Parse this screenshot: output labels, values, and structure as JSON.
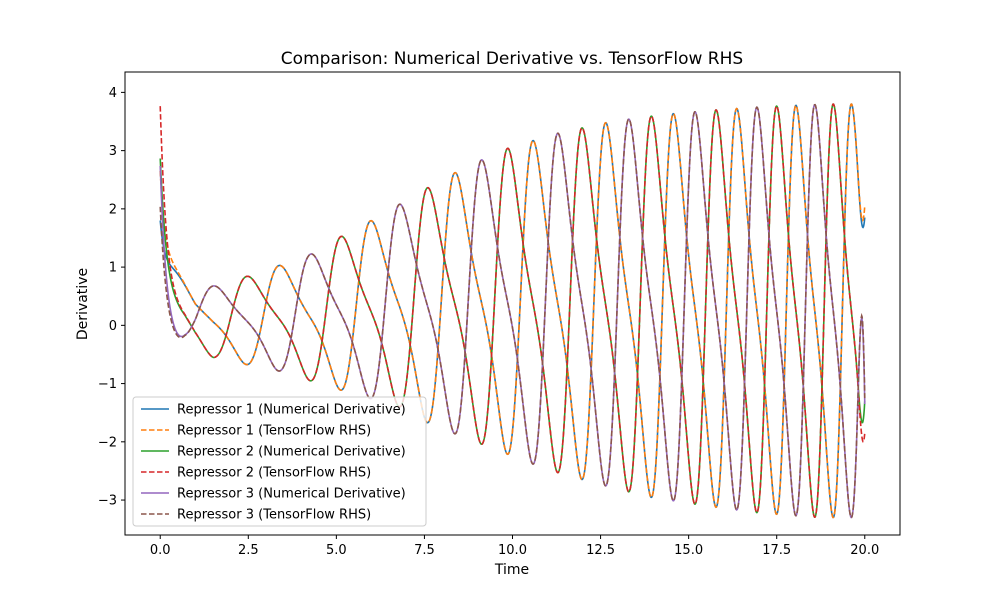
{
  "chart_data": {
    "type": "line",
    "title": "Comparison: Numerical Derivative vs. TensorFlow RHS",
    "xlabel": "Time",
    "ylabel": "Derivative",
    "xlim": [
      -1.0,
      21.0
    ],
    "ylim": [
      -3.6,
      4.35
    ],
    "xticks": [
      0.0,
      2.5,
      5.0,
      7.5,
      10.0,
      12.5,
      15.0,
      17.5,
      20.0
    ],
    "xtick_labels": [
      "0.0",
      "2.5",
      "5.0",
      "7.5",
      "10.0",
      "12.5",
      "15.0",
      "17.5",
      "20.0"
    ],
    "yticks": [
      -3,
      -2,
      -1,
      0,
      1,
      2,
      3,
      4
    ],
    "ytick_labels": [
      "−3",
      "−2",
      "−1",
      "0",
      "1",
      "2",
      "3",
      "4"
    ],
    "grid": false,
    "legend_position": "lower-left",
    "oscillation": {
      "t_start": 0.0,
      "t_end": 20.0,
      "base_period": 3.1,
      "final_period": 1.5,
      "phase_offsets": [
        0.0,
        0.6667,
        0.3333
      ]
    },
    "envelope": {
      "upper": {
        "t": [
          0.0,
          1.0,
          2.0,
          3.0,
          4.2,
          5.2,
          6.3,
          7.4,
          8.6,
          9.9,
          11.3,
          12.8,
          14.3,
          15.8,
          17.3,
          19.0,
          20.0
        ],
        "v": [
          1.0,
          0.6,
          0.75,
          0.95,
          1.2,
          1.55,
          1.9,
          2.3,
          2.7,
          3.05,
          3.3,
          3.5,
          3.62,
          3.7,
          3.76,
          3.8,
          3.8
        ]
      },
      "lower": {
        "t": [
          0.0,
          0.7,
          1.5,
          2.5,
          3.5,
          4.5,
          5.5,
          6.8,
          7.5,
          8.6,
          9.8,
          11.0,
          12.4,
          13.9,
          15.5,
          17.0,
          18.7,
          20.0
        ],
        "v": [
          -0.3,
          -0.28,
          -0.55,
          -0.68,
          -0.8,
          -1.0,
          -1.18,
          -1.4,
          -1.65,
          -1.92,
          -2.2,
          -2.48,
          -2.72,
          -2.95,
          -3.1,
          -3.22,
          -3.3,
          -3.3
        ]
      }
    },
    "initial_transient": {
      "decay": 0.5,
      "series_start_values": [
        1.8,
        3.1,
        2.5
      ],
      "tf_start_values": [
        2.65,
        4.0,
        1.8
      ]
    },
    "end_values": {
      "numerical": [
        1.85,
        -1.3,
        -1.35
      ],
      "tf": [
        2.05,
        -1.85,
        -1.25
      ]
    },
    "series": [
      {
        "name": "Repressor 1 (Numerical Derivative)",
        "color": "#1f77b4",
        "style": "solid",
        "oscillator": 0,
        "tf": false
      },
      {
        "name": "Repressor 1 (TensorFlow RHS)",
        "color": "#ff7f0e",
        "style": "dashed",
        "oscillator": 0,
        "tf": true
      },
      {
        "name": "Repressor 2 (Numerical Derivative)",
        "color": "#2ca02c",
        "style": "solid",
        "oscillator": 1,
        "tf": false
      },
      {
        "name": "Repressor 2 (TensorFlow RHS)",
        "color": "#d62728",
        "style": "dashed",
        "oscillator": 1,
        "tf": true
      },
      {
        "name": "Repressor 3 (Numerical Derivative)",
        "color": "#9467bd",
        "style": "solid",
        "oscillator": 2,
        "tf": false
      },
      {
        "name": "Repressor 3 (TensorFlow RHS)",
        "color": "#8c564b",
        "style": "dashed",
        "oscillator": 2,
        "tf": true
      }
    ]
  }
}
